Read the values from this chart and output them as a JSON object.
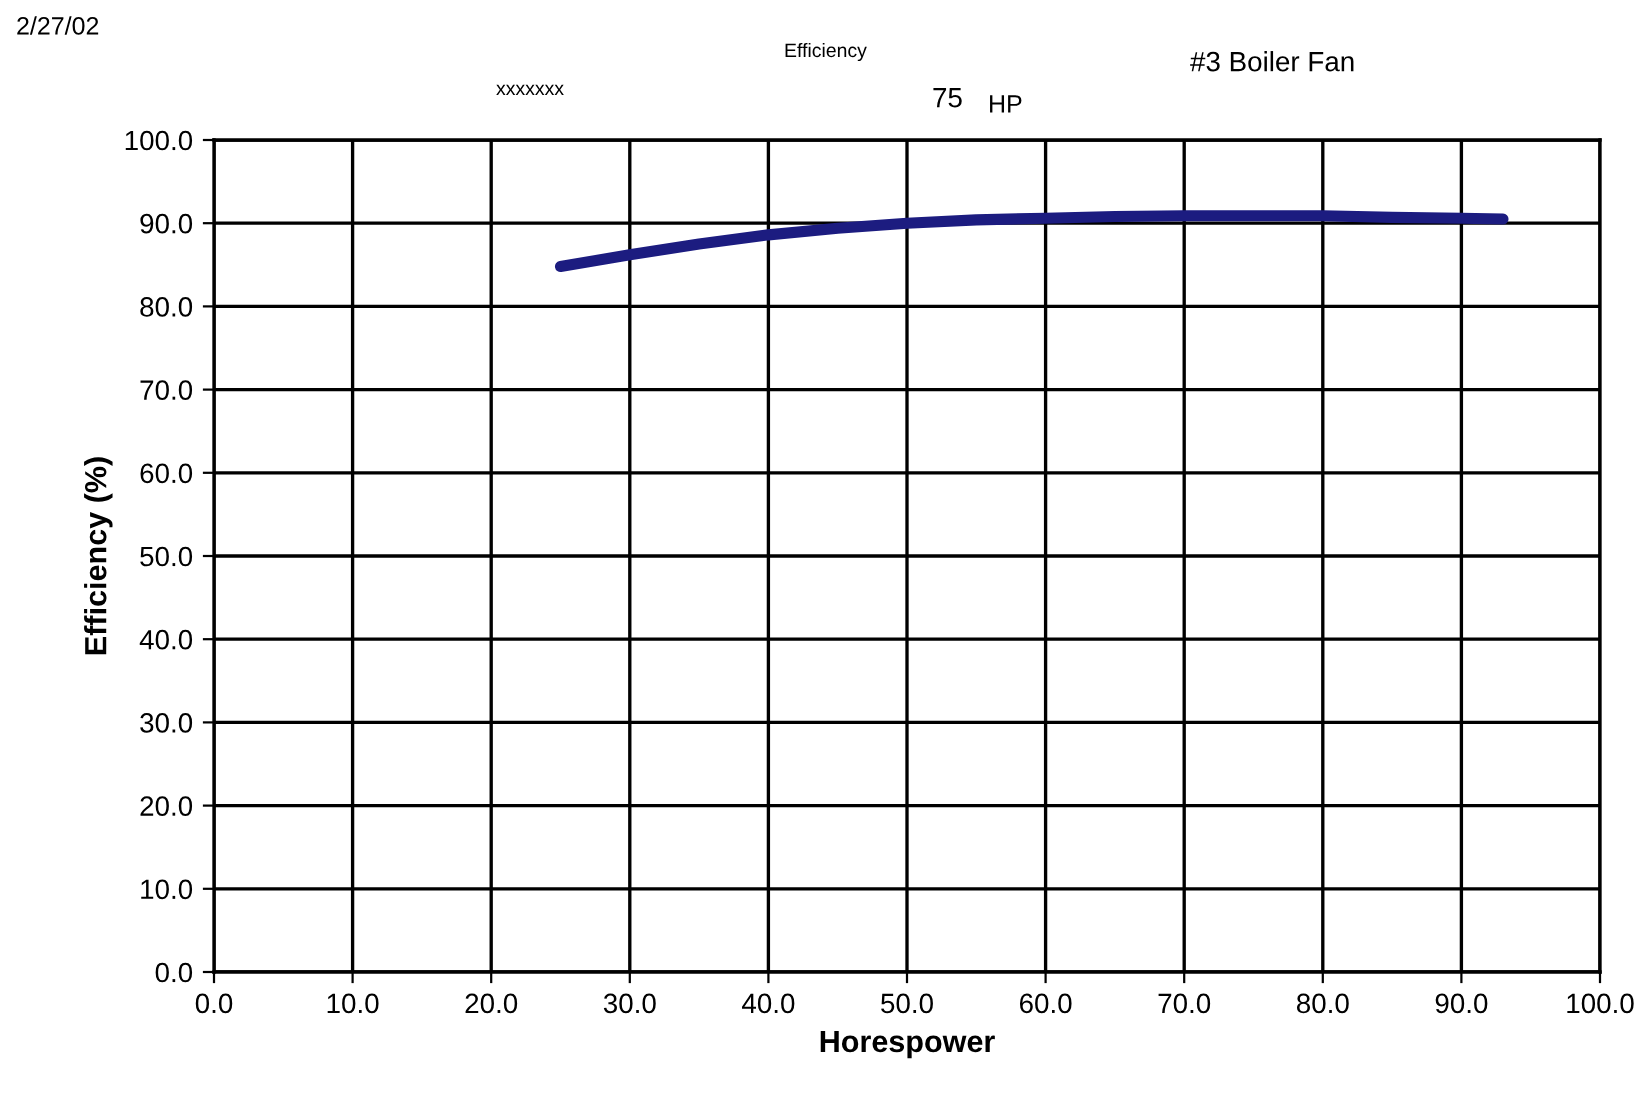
{
  "chart_data": {
    "type": "line",
    "xlabel": "Horespower",
    "ylabel": "Efficiency (%)",
    "annotations": [
      "2/27/02",
      "xxxxxxx",
      "Efficiency",
      "75",
      "HP",
      "#3 Boiler Fan"
    ],
    "x": [
      25,
      30,
      35,
      40,
      45,
      50,
      55,
      60,
      65,
      70,
      75,
      80,
      85,
      90,
      93
    ],
    "series": [
      {
        "color": "#1c1c80",
        "values": [
          84.8,
          86.2,
          87.5,
          88.6,
          89.4,
          90.0,
          90.4,
          90.6,
          90.8,
          90.9,
          90.9,
          90.9,
          90.7,
          90.6,
          90.5
        ]
      }
    ],
    "xlim": [
      0,
      100
    ],
    "ylim": [
      0,
      100
    ],
    "xticks": [
      {
        "value": 0,
        "label": "0.0"
      },
      {
        "value": 10,
        "label": "10.0"
      },
      {
        "value": 20,
        "label": "20.0"
      },
      {
        "value": 30,
        "label": "30.0"
      },
      {
        "value": 40,
        "label": "40.0"
      },
      {
        "value": 50,
        "label": "50.0"
      },
      {
        "value": 60,
        "label": "60.0"
      },
      {
        "value": 70,
        "label": "70.0"
      },
      {
        "value": 80,
        "label": "80.0"
      },
      {
        "value": 90,
        "label": "90.0"
      },
      {
        "value": 100,
        "label": "100.0"
      }
    ],
    "yticks": [
      {
        "value": 0,
        "label": "0.0"
      },
      {
        "value": 10,
        "label": "10.0"
      },
      {
        "value": 20,
        "label": "20.0"
      },
      {
        "value": 30,
        "label": "30.0"
      },
      {
        "value": 40,
        "label": "40.0"
      },
      {
        "value": 50,
        "label": "50.0"
      },
      {
        "value": 60,
        "label": "60.0"
      },
      {
        "value": 70,
        "label": "70.0"
      },
      {
        "value": 80,
        "label": "80.0"
      },
      {
        "value": 90,
        "label": "90.0"
      },
      {
        "value": 100,
        "label": "100.0"
      }
    ],
    "grid": true,
    "legend": false,
    "marker": "none",
    "line_style": "solid"
  }
}
